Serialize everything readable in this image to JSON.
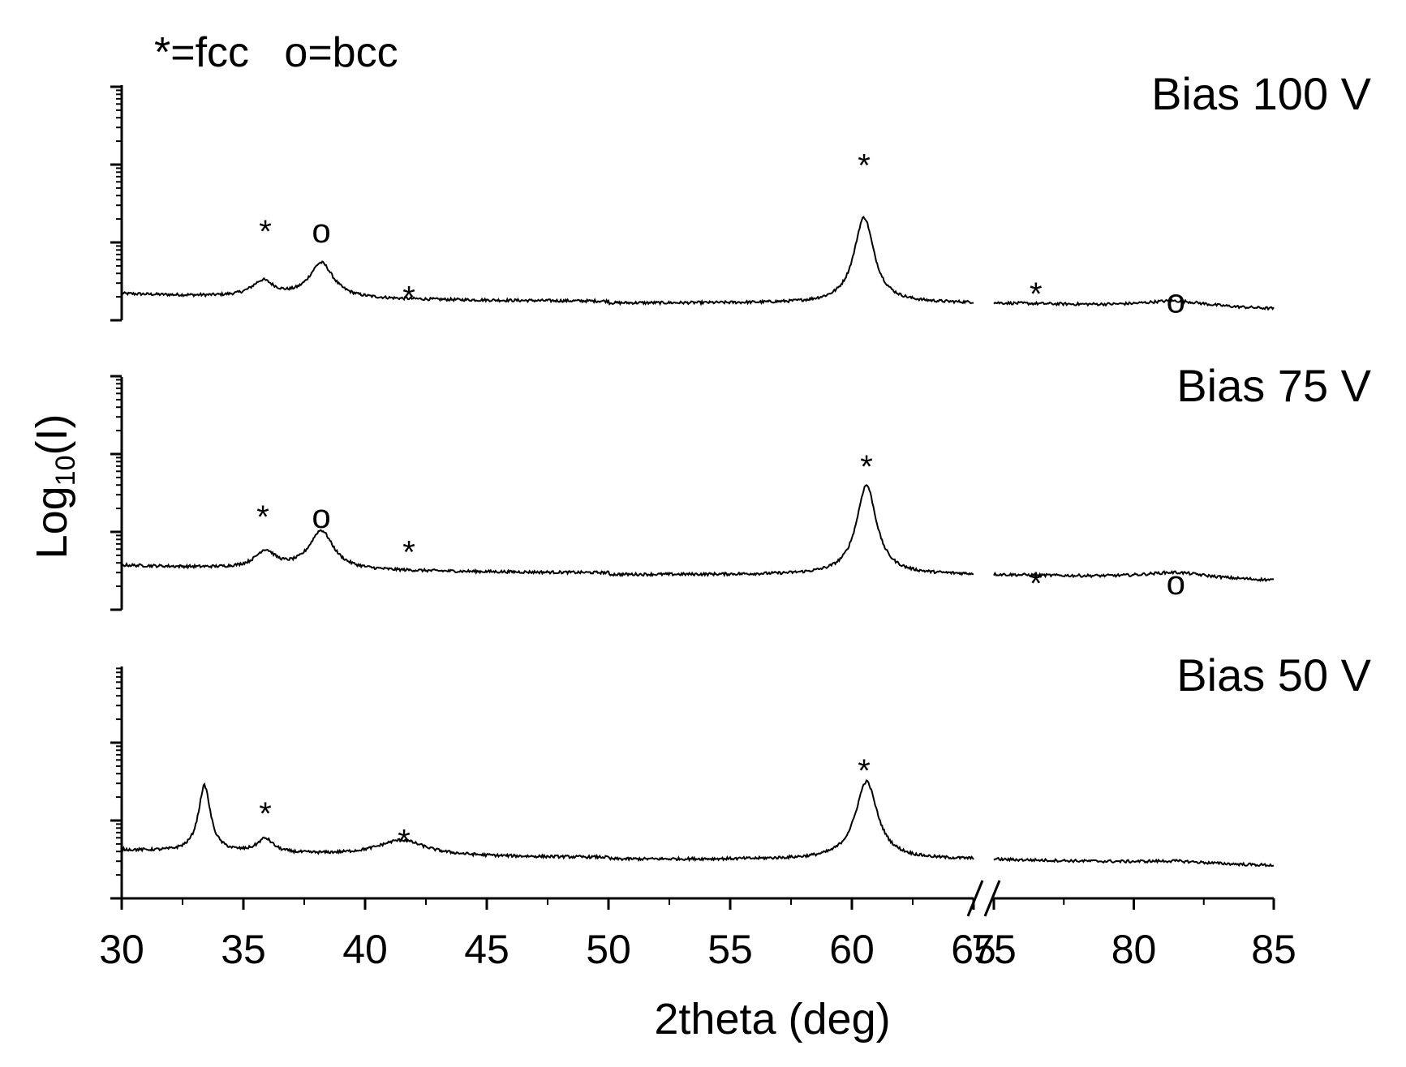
{
  "chart_data": {
    "type": "line",
    "legend": "*=fcc   o=bcc",
    "xlabel": "2theta (deg)",
    "ylabel_main": "Log",
    "ylabel_sub": "10",
    "ylabel_tail": "(I)",
    "x_segments": [
      [
        30,
        65
      ],
      [
        75,
        85
      ]
    ],
    "x_ticks": [
      "30",
      "35",
      "40",
      "45",
      "50",
      "55",
      "60",
      "65",
      "75",
      "80",
      "85"
    ],
    "y_scale": "log",
    "axis_break": "65-75",
    "panels": [
      {
        "label": "Bias 100 V",
        "baseline": 0.22,
        "peaks": [
          [
            35.8,
            0.2,
            0.55
          ],
          [
            38.2,
            0.45,
            0.6
          ],
          [
            60.5,
            1.1,
            0.5
          ],
          [
            81.5,
            0.08,
            1.4
          ]
        ],
        "markers": [
          {
            "symbol": "*",
            "x": 35.9,
            "y": 1.0
          },
          {
            "symbol": "o",
            "x": 38.2,
            "y": 1.0
          },
          {
            "symbol": "*",
            "x": 41.8,
            "y": 0.15
          },
          {
            "symbol": "*",
            "x": 60.5,
            "y": 1.85
          },
          {
            "symbol": "*",
            "x": 76.5,
            "y": 0.2
          },
          {
            "symbol": "o",
            "x": 81.5,
            "y": 0.1
          }
        ]
      },
      {
        "label": "Bias 75 V",
        "baseline": 0.45,
        "peaks": [
          [
            35.9,
            0.22,
            0.5
          ],
          [
            38.2,
            0.5,
            0.6
          ],
          [
            60.6,
            1.15,
            0.5
          ],
          [
            81.5,
            0.08,
            1.4
          ]
        ],
        "markers": [
          {
            "symbol": "*",
            "x": 35.8,
            "y": 1.05
          },
          {
            "symbol": "o",
            "x": 38.2,
            "y": 1.05
          },
          {
            "symbol": "*",
            "x": 41.8,
            "y": 0.6
          },
          {
            "symbol": "*",
            "x": 60.6,
            "y": 1.7
          },
          {
            "symbol": "*",
            "x": 76.5,
            "y": 0.2
          },
          {
            "symbol": "o",
            "x": 81.5,
            "y": 0.2
          }
        ]
      },
      {
        "label": "Bias 50 V",
        "baseline": 0.5,
        "peaks": [
          [
            33.4,
            0.85,
            0.3
          ],
          [
            35.9,
            0.18,
            0.4
          ],
          [
            41.5,
            0.2,
            1.2
          ],
          [
            60.6,
            1.0,
            0.55
          ],
          [
            81.5,
            0.03,
            1.4
          ]
        ],
        "markers": [
          {
            "symbol": "*",
            "x": 35.9,
            "y": 0.95
          },
          {
            "symbol": "*",
            "x": 41.6,
            "y": 0.6
          },
          {
            "symbol": "*",
            "x": 60.5,
            "y": 1.5
          }
        ]
      }
    ]
  }
}
